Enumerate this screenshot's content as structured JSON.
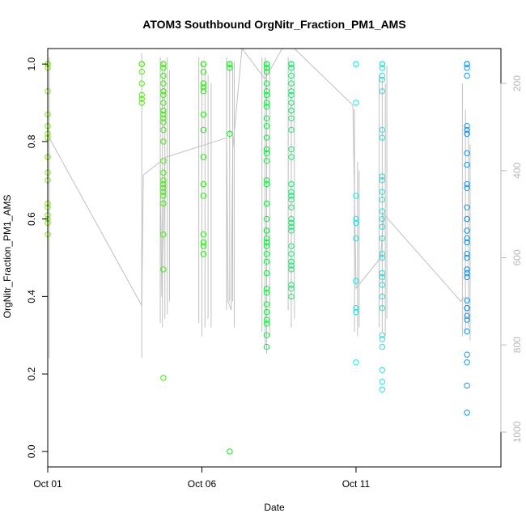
{
  "chart_data": {
    "type": "scatter",
    "title": "ATOM3 Southbound OrgNitr_Fraction_PM1_AMS",
    "xlabel": "Date",
    "ylabel": "OrgNitr_Fraction_PM1_AMS",
    "xlim": [
      0.0,
      14.7
    ],
    "ylim": [
      -0.04,
      1.04
    ],
    "x_ticks": [
      {
        "value": 0,
        "label": "Oct 01"
      },
      {
        "value": 5,
        "label": "Oct 06"
      },
      {
        "value": 10,
        "label": "Oct 11"
      }
    ],
    "y_ticks": [
      {
        "value": 0.0,
        "label": "0.0"
      },
      {
        "value": 0.2,
        "label": "0.2"
      },
      {
        "value": 0.4,
        "label": "0.4"
      },
      {
        "value": 0.6,
        "label": "0.6"
      },
      {
        "value": 0.8,
        "label": "0.8"
      },
      {
        "value": 1.0,
        "label": "1.0"
      }
    ],
    "right_axis": {
      "label": "",
      "lim": [
        1080,
        120
      ],
      "ticks": [
        {
          "value": 200,
          "label": "200"
        },
        {
          "value": 400,
          "label": "400"
        },
        {
          "value": 600,
          "label": "600"
        },
        {
          "value": 800,
          "label": "800"
        },
        {
          "value": 1000,
          "label": "1000"
        }
      ],
      "color": "#b8b8b8"
    },
    "grid": false,
    "legend": "none",
    "marker": "open-circle",
    "series": [
      {
        "color": "#7fe619",
        "x": [
          0,
          0,
          0,
          0,
          0,
          0,
          0,
          0,
          0,
          0,
          0,
          0,
          0,
          0,
          0,
          0,
          0,
          0,
          0,
          0
        ],
        "y": [
          1.0,
          1.0,
          1.0,
          0.99,
          0.93,
          0.87,
          0.84,
          0.82,
          0.81,
          0.76,
          0.76,
          0.72,
          0.7,
          0.64,
          0.63,
          0.61,
          0.6,
          0.59,
          0.56,
          1.0
        ]
      },
      {
        "color": "#5de619",
        "x": [
          3.05,
          3.05,
          3.05,
          3.05,
          3.05,
          3.05,
          3.05,
          3.05
        ],
        "y": [
          1.0,
          1.0,
          0.98,
          0.95,
          0.92,
          0.91,
          0.9,
          1.0
        ]
      },
      {
        "color": "#48e619",
        "x": [
          3.75,
          3.75,
          3.75,
          3.75,
          3.75,
          3.75,
          3.75,
          3.75,
          3.75,
          3.75,
          3.75,
          3.75,
          3.75,
          3.75,
          3.75,
          3.75,
          3.75,
          3.75,
          3.75,
          3.75,
          3.75,
          3.75,
          3.75,
          3.75,
          3.75,
          3.75,
          3.75,
          3.75
        ],
        "y": [
          1.0,
          1.0,
          0.99,
          0.97,
          0.95,
          0.93,
          0.92,
          0.9,
          0.88,
          0.88,
          0.87,
          0.86,
          0.85,
          0.8,
          0.75,
          0.72,
          0.7,
          0.69,
          0.68,
          0.67,
          0.66,
          0.64,
          0.56,
          0.47,
          0.19,
          1.0,
          0.93,
          0.83
        ]
      },
      {
        "color": "#2fe619",
        "x": [
          5.05,
          5.05,
          5.05,
          5.05,
          5.05,
          5.05,
          5.05,
          5.05,
          5.05,
          5.05,
          5.05,
          5.05,
          5.05,
          5.05,
          5.05
        ],
        "y": [
          1.0,
          1.0,
          0.98,
          0.95,
          0.94,
          0.93,
          0.87,
          0.83,
          0.76,
          0.69,
          0.66,
          0.56,
          0.54,
          0.53,
          0.51
        ]
      },
      {
        "color": "#1fe62a",
        "x": [
          5.9,
          5.9,
          5.9,
          5.9,
          5.9,
          5.9
        ],
        "y": [
          1.0,
          1.0,
          0.99,
          0.82,
          0.0,
          1.0
        ]
      },
      {
        "color": "#19e647",
        "x": [
          7.1,
          7.1,
          7.1,
          7.1,
          7.1,
          7.1,
          7.1,
          7.1,
          7.1,
          7.1,
          7.1,
          7.1,
          7.1,
          7.1,
          7.1,
          7.1,
          7.1,
          7.1,
          7.1,
          7.1,
          7.1,
          7.1,
          7.1,
          7.1,
          7.1,
          7.1,
          7.1,
          7.1,
          7.1,
          7.1,
          7.1,
          7.1,
          7.1,
          7.1,
          7.1,
          7.1,
          7.1
        ],
        "y": [
          1.0,
          1.0,
          0.99,
          0.98,
          0.95,
          0.93,
          0.92,
          0.89,
          0.86,
          0.84,
          0.81,
          0.78,
          0.78,
          0.77,
          0.75,
          0.7,
          0.69,
          0.64,
          0.6,
          0.57,
          0.57,
          0.55,
          0.54,
          0.53,
          0.51,
          0.49,
          0.46,
          0.42,
          0.41,
          0.38,
          0.36,
          0.34,
          0.33,
          0.3,
          0.27,
          1.0,
          0.9
        ]
      },
      {
        "color": "#19e673",
        "x": [
          7.9,
          7.9,
          7.9,
          7.9,
          7.9,
          7.9,
          7.9,
          7.9,
          7.9,
          7.9,
          7.9,
          7.9,
          7.9,
          7.9,
          7.9,
          7.9,
          7.9,
          7.9,
          7.9,
          7.9,
          7.9,
          7.9,
          7.9,
          7.9,
          7.9,
          7.9,
          7.9,
          7.9,
          7.9,
          7.9,
          7.9,
          7.9
        ],
        "y": [
          1.0,
          1.0,
          0.99,
          0.97,
          0.95,
          0.93,
          0.92,
          0.9,
          0.88,
          0.86,
          0.83,
          0.78,
          0.76,
          0.69,
          0.67,
          0.66,
          0.65,
          0.63,
          0.6,
          0.59,
          0.58,
          0.57,
          0.53,
          0.51,
          0.49,
          0.48,
          0.47,
          0.43,
          0.42,
          0.4,
          1.0,
          0.88
        ]
      },
      {
        "color": "#19e6e6",
        "x": [
          10,
          10,
          10,
          10,
          10,
          10,
          10,
          10,
          10,
          10,
          10
        ],
        "y": [
          1.0,
          1.0,
          0.9,
          0.66,
          0.6,
          0.59,
          0.55,
          0.44,
          0.37,
          0.36,
          0.23
        ]
      },
      {
        "color": "#19e6d9",
        "x": [
          10.85,
          10.85,
          10.85,
          10.85,
          10.85,
          10.85,
          10.85,
          10.85,
          10.85,
          10.85,
          10.85,
          10.85,
          10.85,
          10.85,
          10.85,
          10.85,
          10.85,
          10.85,
          10.85,
          10.85,
          10.85,
          10.85,
          10.85,
          10.85,
          10.85,
          10.85,
          10.85,
          10.85,
          10.85,
          10.85
        ],
        "y": [
          1.0,
          1.0,
          0.99,
          0.97,
          0.96,
          0.93,
          0.83,
          0.81,
          0.71,
          0.7,
          0.67,
          0.65,
          0.62,
          0.6,
          0.58,
          0.55,
          0.51,
          0.5,
          0.46,
          0.45,
          0.43,
          0.4,
          0.37,
          0.3,
          0.29,
          0.27,
          0.21,
          0.18,
          0.16,
          1.0
        ]
      },
      {
        "color": "#1996e6",
        "x": [
          13.6,
          13.6,
          13.6,
          13.6,
          13.6,
          13.6,
          13.6,
          13.6,
          13.6,
          13.6,
          13.6,
          13.6,
          13.6,
          13.6,
          13.6,
          13.6,
          13.6,
          13.6,
          13.6,
          13.6,
          13.6,
          13.6,
          13.6,
          13.6,
          13.6,
          13.6,
          13.6,
          13.6,
          13.6,
          13.6,
          13.6,
          13.6,
          13.6,
          13.6
        ],
        "y": [
          1.0,
          1.0,
          0.99,
          0.97,
          0.84,
          0.83,
          0.82,
          0.77,
          0.74,
          0.69,
          0.68,
          0.63,
          0.6,
          0.57,
          0.55,
          0.54,
          0.51,
          0.5,
          0.47,
          0.46,
          0.45,
          0.39,
          0.37,
          0.37,
          0.35,
          0.34,
          0.31,
          0.25,
          0.23,
          0.17,
          0.1,
          1.0,
          0.82,
          0.6
        ]
      }
    ],
    "altitude_trace": {
      "color": "#c0c0c0",
      "vertical_segments": [
        {
          "x": 0.05,
          "top": 140,
          "bottom": 830
        },
        {
          "x": 3.05,
          "top": 130,
          "bottom": 830
        },
        {
          "x": 3.65,
          "top": 140,
          "bottom": 750
        },
        {
          "x": 3.72,
          "top": 150,
          "bottom": 760
        },
        {
          "x": 3.8,
          "top": 160,
          "bottom": 740
        },
        {
          "x": 3.88,
          "top": 140,
          "bottom": 730
        },
        {
          "x": 3.95,
          "top": 170,
          "bottom": 700
        },
        {
          "x": 4.9,
          "top": 140,
          "bottom": 750
        },
        {
          "x": 5.0,
          "top": 150,
          "bottom": 780
        },
        {
          "x": 5.1,
          "top": 160,
          "bottom": 760
        },
        {
          "x": 5.2,
          "top": 180,
          "bottom": 740
        },
        {
          "x": 5.3,
          "top": 200,
          "bottom": 760
        },
        {
          "x": 5.8,
          "top": 140,
          "bottom": 720
        },
        {
          "x": 5.9,
          "top": 150,
          "bottom": 700
        },
        {
          "x": 6.0,
          "top": 160,
          "bottom": 700
        },
        {
          "x": 6.05,
          "top": 150,
          "bottom": 760
        },
        {
          "x": 6.95,
          "top": 140,
          "bottom": 770
        },
        {
          "x": 7.05,
          "top": 140,
          "bottom": 800
        },
        {
          "x": 7.1,
          "top": 150,
          "bottom": 820
        },
        {
          "x": 7.2,
          "top": 160,
          "bottom": 780
        },
        {
          "x": 7.8,
          "top": 140,
          "bottom": 720
        },
        {
          "x": 7.9,
          "top": 150,
          "bottom": 760
        },
        {
          "x": 8.0,
          "top": 160,
          "bottom": 740
        },
        {
          "x": 9.95,
          "top": 260,
          "bottom": 770
        },
        {
          "x": 10.05,
          "top": 380,
          "bottom": 780
        },
        {
          "x": 10.1,
          "top": 400,
          "bottom": 760
        },
        {
          "x": 10.75,
          "top": 180,
          "bottom": 760
        },
        {
          "x": 10.85,
          "top": 190,
          "bottom": 770
        },
        {
          "x": 10.95,
          "top": 200,
          "bottom": 780
        },
        {
          "x": 11.0,
          "top": 160,
          "bottom": 740
        },
        {
          "x": 13.45,
          "top": 200,
          "bottom": 780
        },
        {
          "x": 13.55,
          "top": 260,
          "bottom": 770
        },
        {
          "x": 13.65,
          "top": 300,
          "bottom": 760
        },
        {
          "x": 13.7,
          "top": 340,
          "bottom": 790
        }
      ],
      "path": [
        [
          0.05,
          325
        ],
        [
          3.05,
          710
        ],
        [
          3.1,
          410
        ],
        [
          3.65,
          380
        ],
        [
          3.7,
          690
        ],
        [
          3.8,
          370
        ],
        [
          5.8,
          325
        ],
        [
          5.85,
          700
        ],
        [
          5.95,
          720
        ],
        [
          6.0,
          350
        ],
        [
          6.3,
          120
        ],
        [
          7.05,
          190
        ],
        [
          7.6,
          120
        ],
        [
          8.0,
          120
        ],
        [
          9.9,
          250
        ],
        [
          10.0,
          670
        ],
        [
          10.8,
          600
        ],
        [
          10.9,
          500
        ],
        [
          13.4,
          700
        ],
        [
          13.5,
          690
        ]
      ]
    }
  }
}
